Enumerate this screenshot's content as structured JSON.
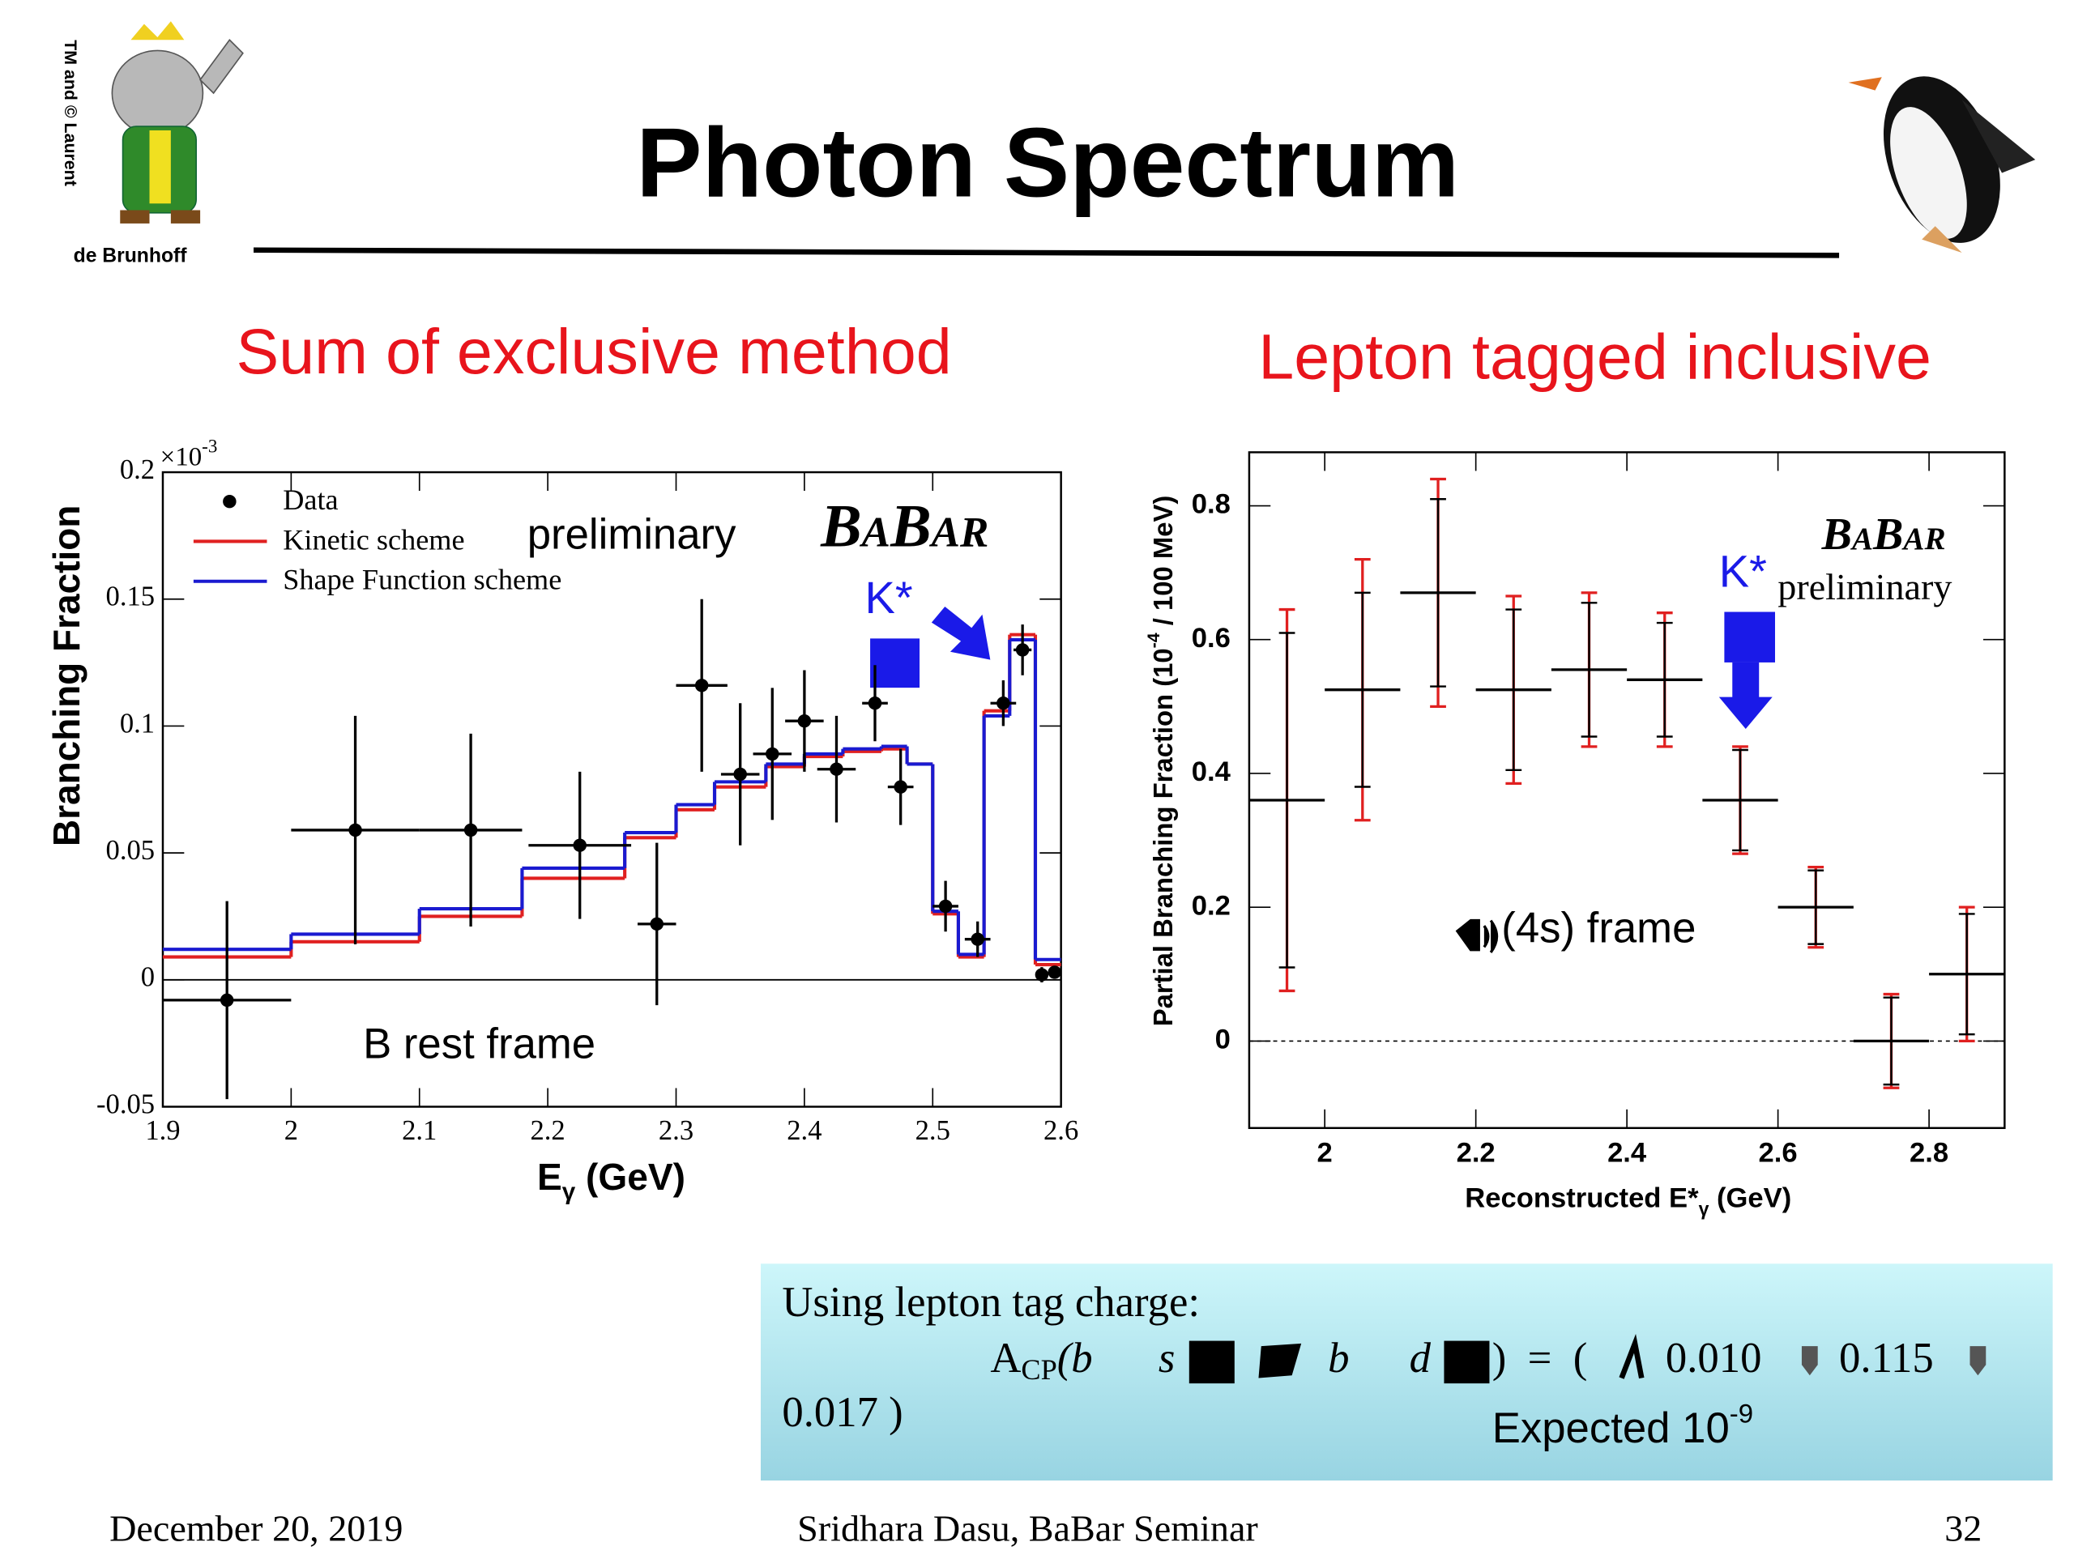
{
  "slide": {
    "title": "Photon Spectrum",
    "logo_text": [
      "TM and © Laurent",
      "de Brunhoff"
    ],
    "left_heading": "Sum of exclusive method",
    "right_heading": "Lepton tagged inclusive",
    "box": {
      "line1": "Using lepton tag charge:",
      "formula": [
        "A",
        "CP",
        "(b",
        "s",
        "b",
        "d",
        ")  =  (",
        "0.010",
        "0.115"
      ],
      "line3": "0.017 )",
      "expected": "Expected 10",
      "expected_exp": "-9"
    },
    "footer": {
      "date": "December 20, 2019",
      "author": "Sridhara Dasu, BaBar Seminar",
      "page": "32"
    }
  },
  "chart_data": [
    {
      "type": "histogram",
      "y_label": "Branching Fraction",
      "y_scale": "×10",
      "y_scale_exp": "-3",
      "x_label": "E",
      "x_label_sub": "γ",
      "x_label_unit": " (GeV)",
      "xlim": [
        1.9,
        2.6
      ],
      "ylim": [
        -0.05,
        0.2
      ],
      "xticks": [
        1.9,
        2,
        2.1,
        2.2,
        2.3,
        2.4,
        2.5,
        2.6
      ],
      "yticks": [
        -0.05,
        0,
        0.05,
        0.1,
        0.15,
        0.2
      ],
      "bins": [
        1.9,
        2.0,
        2.1,
        2.18,
        2.26,
        2.3,
        2.33,
        2.37,
        2.4,
        2.43,
        2.46,
        2.48,
        2.5,
        2.52,
        2.54,
        2.56,
        2.58,
        2.6
      ],
      "series": [
        {
          "name": "Kinetic scheme",
          "color": "#e02020",
          "values": [
            0.009,
            0.015,
            0.025,
            0.04,
            0.056,
            0.067,
            0.076,
            0.084,
            0.088,
            0.09,
            0.091,
            0.085,
            0.026,
            0.009,
            0.106,
            0.136,
            0.006
          ]
        },
        {
          "name": "Shape Function scheme",
          "color": "#1a1ad0",
          "values": [
            0.012,
            0.018,
            0.028,
            0.044,
            0.058,
            0.069,
            0.078,
            0.085,
            0.089,
            0.091,
            0.092,
            0.085,
            0.027,
            0.01,
            0.104,
            0.134,
            0.008
          ]
        }
      ],
      "points": {
        "name": "Data",
        "color": "#000000",
        "x": [
          1.95,
          2.05,
          2.14,
          2.225,
          2.285,
          2.32,
          2.35,
          2.375,
          2.4,
          2.425,
          2.455,
          2.475,
          2.51,
          2.535,
          2.555,
          2.57,
          2.585,
          2.595
        ],
        "values": [
          -0.008,
          0.059,
          0.059,
          0.053,
          0.022,
          0.116,
          0.081,
          0.089,
          0.102,
          0.083,
          0.109,
          0.076,
          0.029,
          0.016,
          0.109,
          0.13,
          0.002,
          0.003
        ],
        "xerr": [
          0.05,
          0.05,
          0.04,
          0.04,
          0.015,
          0.02,
          0.015,
          0.015,
          0.015,
          0.015,
          0.01,
          0.01,
          0.01,
          0.01,
          0.01,
          0.007,
          0.005,
          0.005
        ],
        "yerr": [
          0.039,
          0.045,
          0.038,
          0.029,
          0.032,
          0.034,
          0.028,
          0.026,
          0.02,
          0.021,
          0.015,
          0.015,
          0.01,
          0.007,
          0.009,
          0.01,
          0.003,
          0.002
        ]
      },
      "annotations": {
        "preliminary": "preliminary",
        "logo": "BaBar",
        "kstar": "K*",
        "frame": "B rest frame"
      }
    },
    {
      "type": "errorbar",
      "y_label": "Partial Branching Fraction (10",
      "y_label_exp": "-4",
      "y_label_rest": " / 100 MeV)",
      "x_label": "Reconstructed E*",
      "x_label_sub": "γ",
      "x_label_unit": " (GeV)",
      "xlim": [
        1.9,
        2.9
      ],
      "ylim": [
        -0.13,
        0.88
      ],
      "xticks": [
        2,
        2.2,
        2.4,
        2.6,
        2.8
      ],
      "yticks": [
        0,
        0.2,
        0.4,
        0.6,
        0.8
      ],
      "x": [
        1.95,
        2.05,
        2.15,
        2.25,
        2.35,
        2.45,
        2.55,
        2.65,
        2.75,
        2.85
      ],
      "xerr": [
        0.05,
        0.05,
        0.05,
        0.05,
        0.05,
        0.05,
        0.05,
        0.05,
        0.05,
        0.05
      ],
      "values": [
        0.36,
        0.525,
        0.67,
        0.525,
        0.555,
        0.54,
        0.36,
        0.2,
        0.0,
        0.1
      ],
      "stat_err": [
        0.25,
        0.145,
        0.14,
        0.12,
        0.1,
        0.085,
        0.075,
        0.055,
        0.065,
        0.09
      ],
      "total_err": [
        0.285,
        0.195,
        0.17,
        0.14,
        0.115,
        0.1,
        0.08,
        0.06,
        0.07,
        0.1
      ],
      "colors": {
        "stat": "#000000",
        "total": "#e02020"
      },
      "annotations": {
        "kstar": "K*",
        "preliminary": "preliminary",
        "logo": "BaBar",
        "frame": "(4s) frame"
      }
    }
  ]
}
